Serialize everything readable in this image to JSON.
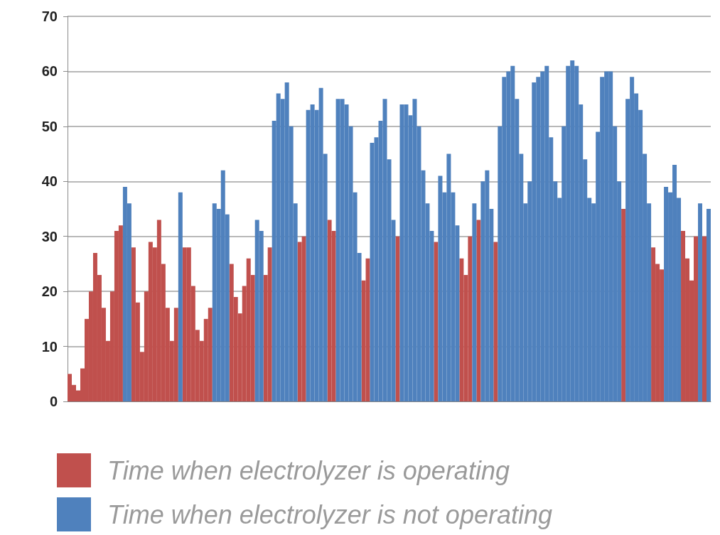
{
  "chart_data": {
    "type": "bar",
    "categories": [
      null,
      null,
      null,
      null,
      null,
      null,
      null,
      null,
      null,
      null,
      null,
      null,
      null,
      null,
      null,
      null,
      null,
      null,
      null,
      null,
      null,
      null,
      null,
      null,
      null,
      null,
      null,
      null,
      null,
      null,
      null,
      null,
      null,
      null,
      null,
      null,
      null,
      null,
      null,
      null,
      null,
      null,
      null,
      null,
      null,
      null,
      null,
      null,
      null,
      null,
      null,
      null,
      null,
      null,
      null,
      null,
      null,
      null,
      null,
      null,
      null,
      null,
      null,
      null,
      null,
      null,
      null,
      null,
      null,
      null,
      null,
      null,
      null,
      null,
      null,
      null,
      null,
      null,
      null,
      null,
      null,
      null,
      null,
      null,
      null,
      null,
      null,
      null,
      null,
      null,
      null,
      null,
      null,
      null,
      null,
      null,
      null,
      null,
      null,
      null,
      null,
      null,
      null,
      null,
      null,
      null,
      null,
      null,
      null,
      null,
      null,
      null,
      null,
      null,
      null,
      null,
      null,
      null,
      null,
      null,
      null,
      null,
      null,
      null,
      null,
      null,
      null,
      null,
      null,
      null,
      null,
      null,
      null,
      null,
      null,
      null,
      null,
      null,
      null,
      null,
      null,
      null,
      null,
      null,
      null,
      null,
      null,
      null,
      null,
      null,
      null
    ],
    "series": [
      {
        "name": "Time when electrolyzer is operating",
        "color": "#c0504d",
        "values": [
          5,
          3,
          2,
          6,
          15,
          20,
          27,
          23,
          17,
          11,
          20,
          31,
          32,
          null,
          null,
          28,
          18,
          9,
          20,
          29,
          28,
          33,
          25,
          17,
          11,
          17,
          null,
          28,
          28,
          21,
          13,
          11,
          15,
          17,
          null,
          null,
          null,
          null,
          25,
          19,
          16,
          21,
          26,
          23,
          null,
          null,
          23,
          28,
          null,
          null,
          null,
          null,
          null,
          null,
          29,
          30,
          null,
          null,
          null,
          null,
          null,
          33,
          31,
          null,
          null,
          null,
          null,
          null,
          null,
          22,
          26,
          null,
          null,
          null,
          null,
          null,
          null,
          30,
          null,
          null,
          null,
          null,
          null,
          null,
          null,
          null,
          29,
          null,
          null,
          null,
          null,
          null,
          26,
          23,
          30,
          null,
          33,
          null,
          null,
          null,
          29,
          null,
          null,
          null,
          null,
          null,
          null,
          null,
          null,
          null,
          null,
          null,
          null,
          null,
          null,
          null,
          null,
          null,
          null,
          null,
          null,
          null,
          null,
          null,
          null,
          null,
          null,
          null,
          null,
          null,
          35,
          null,
          null,
          null,
          null,
          null,
          null,
          28,
          25,
          24,
          null,
          null,
          null,
          null,
          31,
          26,
          22,
          30,
          null,
          30,
          null
        ]
      },
      {
        "name": "Time when electrolyzer is not operating",
        "color": "#4f81bd",
        "values": [
          null,
          null,
          null,
          null,
          null,
          null,
          null,
          null,
          null,
          null,
          null,
          null,
          null,
          39,
          36,
          null,
          null,
          null,
          null,
          null,
          null,
          null,
          null,
          null,
          null,
          null,
          38,
          null,
          null,
          null,
          null,
          null,
          null,
          null,
          36,
          35,
          42,
          34,
          null,
          null,
          null,
          null,
          null,
          null,
          33,
          31,
          null,
          null,
          51,
          56,
          55,
          58,
          50,
          36,
          null,
          null,
          53,
          54,
          53,
          57,
          45,
          null,
          null,
          55,
          55,
          54,
          50,
          38,
          27,
          null,
          null,
          47,
          48,
          51,
          55,
          44,
          33,
          null,
          54,
          54,
          52,
          55,
          50,
          42,
          36,
          31,
          null,
          41,
          38,
          45,
          38,
          32,
          null,
          null,
          null,
          36,
          null,
          40,
          42,
          35,
          null,
          50,
          59,
          60,
          61,
          55,
          45,
          36,
          40,
          58,
          59,
          60,
          61,
          48,
          40,
          37,
          50,
          61,
          62,
          61,
          54,
          44,
          37,
          36,
          49,
          59,
          60,
          60,
          50,
          40,
          null,
          55,
          59,
          56,
          53,
          45,
          36,
          null,
          null,
          null,
          39,
          38,
          43,
          37,
          null,
          null,
          null,
          null,
          36,
          null,
          35
        ]
      }
    ],
    "ylim": [
      0,
      70
    ],
    "yticks": [
      0,
      10,
      20,
      30,
      40,
      50,
      60,
      70
    ],
    "grid": "y",
    "legend": "bottom left"
  }
}
